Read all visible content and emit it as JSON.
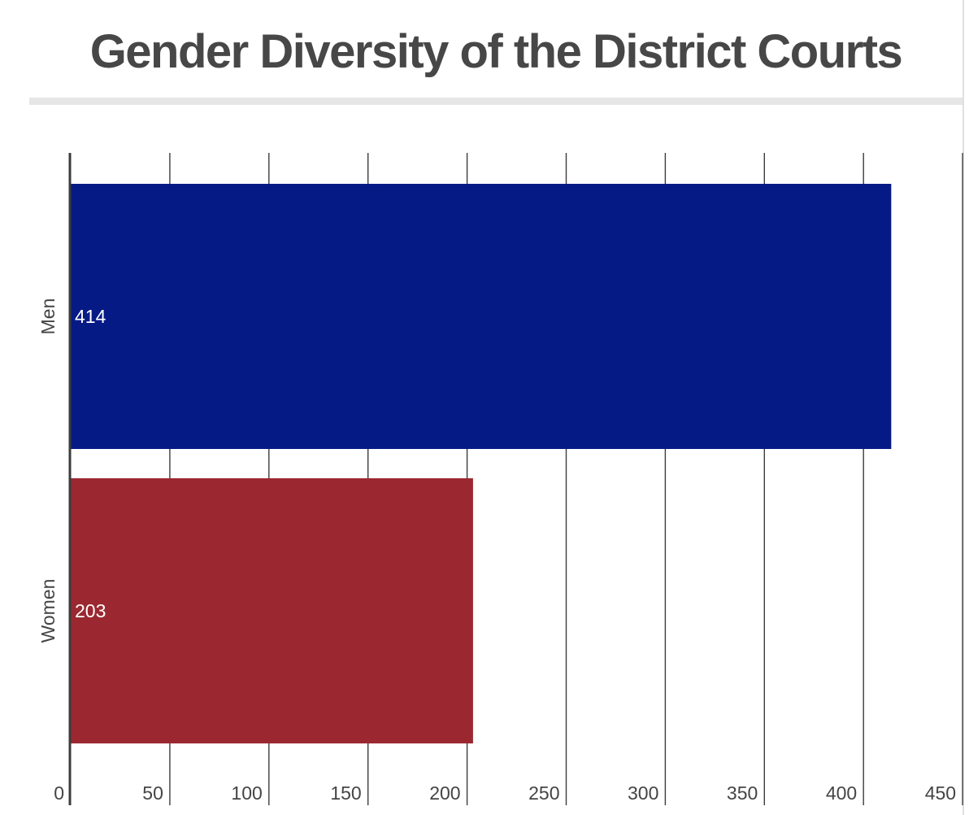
{
  "chart_data": {
    "type": "bar",
    "orientation": "horizontal",
    "title": "Gender Diversity of the District Courts",
    "categories": [
      "Men",
      "Women"
    ],
    "values": [
      414,
      203
    ],
    "colors": [
      "#061a86",
      "#9b2830"
    ],
    "xlim": [
      0,
      450
    ],
    "xticks": [
      "0",
      "50",
      "100",
      "150",
      "200",
      "250",
      "300",
      "350",
      "400",
      "450"
    ],
    "grid": true,
    "legend": "none"
  }
}
